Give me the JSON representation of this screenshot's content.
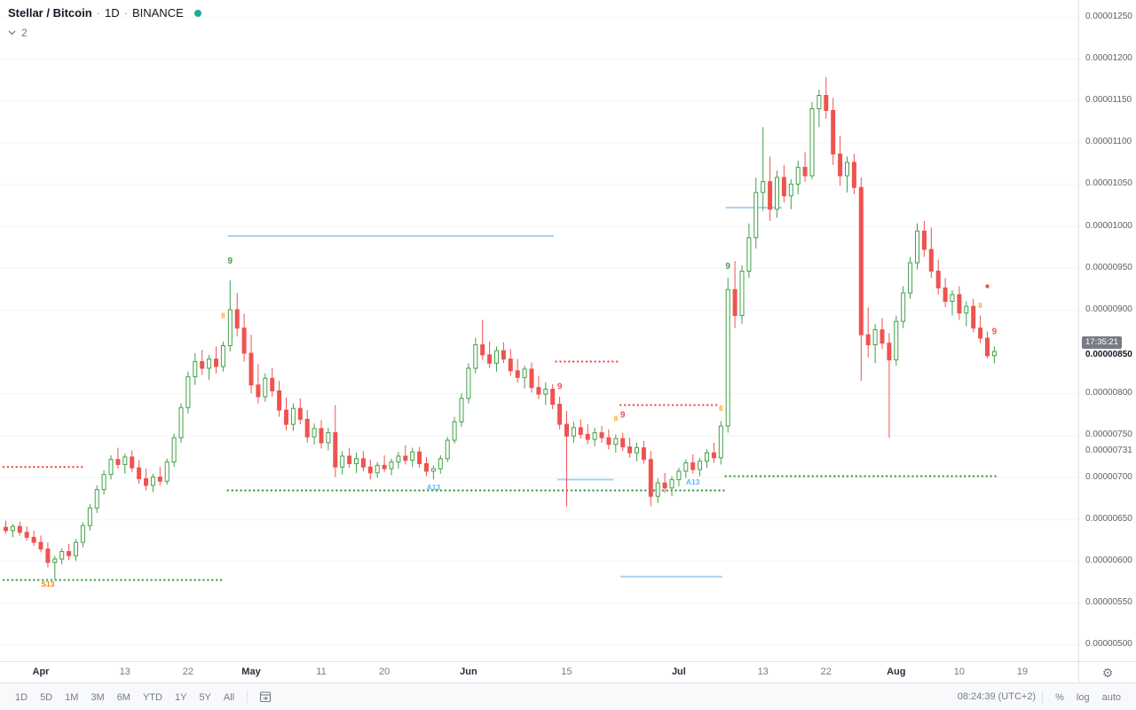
{
  "header": {
    "symbol": "Stellar / Bitcoin",
    "sep": "·",
    "interval": "1D",
    "exchange": "BINANCE",
    "indicators_count": "2",
    "status_color": "#26a69a"
  },
  "toolbar": {
    "ranges": [
      "1D",
      "5D",
      "1M",
      "3M",
      "6M",
      "YTD",
      "1Y",
      "5Y",
      "All"
    ],
    "clock": "08:24:39 (UTC+2)",
    "scales": [
      "%",
      "log",
      "auto"
    ]
  },
  "chart_data": {
    "type": "candlestick",
    "title": "Stellar / Bitcoin · 1D · BINANCE",
    "interval": "1D",
    "exchange": "BINANCE",
    "price_unit": "BTC",
    "value_scale": 1e-08,
    "ylim_sats": [
      480,
      1270
    ],
    "price_ticks": [
      "0.00001250",
      "0.00001200",
      "0.00001150",
      "0.00001100",
      "0.00001050",
      "0.00001000",
      "0.00000950",
      "0.00000900",
      "0.00000800",
      "0.00000750",
      "0.00000700",
      "0.00000650",
      "0.00000600",
      "0.00000550",
      "0.00000500"
    ],
    "extra_price_label": "0.00000731",
    "current": {
      "countdown": "17:35:21",
      "price": "0.00000850",
      "sats": 850
    },
    "time_ticks": [
      {
        "label": "Apr",
        "i": 5,
        "major": true
      },
      {
        "label": "13",
        "i": 17,
        "major": false
      },
      {
        "label": "22",
        "i": 26,
        "major": false
      },
      {
        "label": "May",
        "i": 35,
        "major": true
      },
      {
        "label": "11",
        "i": 45,
        "major": false
      },
      {
        "label": "20",
        "i": 54,
        "major": false
      },
      {
        "label": "Jun",
        "i": 66,
        "major": true
      },
      {
        "label": "15",
        "i": 80,
        "major": false
      },
      {
        "label": "Jul",
        "i": 96,
        "major": true
      },
      {
        "label": "13",
        "i": 108,
        "major": false
      },
      {
        "label": "22",
        "i": 117,
        "major": false
      },
      {
        "label": "Aug",
        "i": 127,
        "major": true
      },
      {
        "label": "10",
        "i": 136,
        "major": false
      },
      {
        "label": "19",
        "i": 145,
        "major": false
      }
    ],
    "candles_ohlc_sats": [
      [
        640,
        648,
        632,
        636
      ],
      [
        636,
        644,
        628,
        641
      ],
      [
        641,
        647,
        630,
        634
      ],
      [
        634,
        641,
        624,
        628
      ],
      [
        628,
        636,
        618,
        622
      ],
      [
        622,
        630,
        610,
        614
      ],
      [
        614,
        622,
        592,
        598
      ],
      [
        598,
        606,
        578,
        602
      ],
      [
        602,
        615,
        596,
        611
      ],
      [
        611,
        620,
        601,
        606
      ],
      [
        606,
        626,
        600,
        622
      ],
      [
        622,
        646,
        616,
        642
      ],
      [
        642,
        668,
        636,
        663
      ],
      [
        663,
        690,
        657,
        685
      ],
      [
        685,
        708,
        679,
        703
      ],
      [
        703,
        726,
        697,
        721
      ],
      [
        721,
        735,
        710,
        715
      ],
      [
        715,
        728,
        704,
        724
      ],
      [
        724,
        732,
        706,
        711
      ],
      [
        711,
        720,
        692,
        698
      ],
      [
        698,
        710,
        684,
        690
      ],
      [
        690,
        704,
        682,
        700
      ],
      [
        700,
        712,
        690,
        695
      ],
      [
        695,
        722,
        691,
        718
      ],
      [
        718,
        752,
        712,
        747
      ],
      [
        747,
        788,
        741,
        783
      ],
      [
        783,
        826,
        776,
        820
      ],
      [
        820,
        848,
        810,
        838
      ],
      [
        838,
        852,
        822,
        830
      ],
      [
        830,
        846,
        816,
        841
      ],
      [
        841,
        856,
        824,
        832
      ],
      [
        832,
        862,
        826,
        857
      ],
      [
        857,
        935,
        850,
        900
      ],
      [
        900,
        920,
        868,
        878
      ],
      [
        878,
        895,
        838,
        848
      ],
      [
        848,
        870,
        800,
        810
      ],
      [
        810,
        835,
        788,
        796
      ],
      [
        796,
        824,
        790,
        818
      ],
      [
        818,
        830,
        796,
        803
      ],
      [
        803,
        815,
        772,
        780
      ],
      [
        780,
        795,
        756,
        763
      ],
      [
        763,
        788,
        755,
        782
      ],
      [
        782,
        794,
        763,
        769
      ],
      [
        769,
        780,
        741,
        748
      ],
      [
        748,
        764,
        739,
        758
      ],
      [
        758,
        768,
        734,
        741
      ],
      [
        741,
        759,
        732,
        753
      ],
      [
        753,
        786,
        700,
        712
      ],
      [
        712,
        731,
        703,
        725
      ],
      [
        725,
        735,
        711,
        716
      ],
      [
        716,
        729,
        705,
        722
      ],
      [
        722,
        731,
        707,
        712
      ],
      [
        712,
        721,
        697,
        705
      ],
      [
        705,
        718,
        699,
        714
      ],
      [
        714,
        726,
        706,
        710
      ],
      [
        710,
        722,
        702,
        718
      ],
      [
        718,
        730,
        710,
        725
      ],
      [
        725,
        738,
        715,
        720
      ],
      [
        720,
        735,
        712,
        730
      ],
      [
        730,
        736,
        711,
        716
      ],
      [
        716,
        724,
        701,
        707
      ],
      [
        707,
        714,
        697,
        710
      ],
      [
        710,
        726,
        704,
        722
      ],
      [
        722,
        748,
        718,
        744
      ],
      [
        744,
        772,
        740,
        766
      ],
      [
        766,
        800,
        760,
        794
      ],
      [
        794,
        836,
        788,
        830
      ],
      [
        830,
        866,
        824,
        858
      ],
      [
        858,
        888,
        840,
        846
      ],
      [
        846,
        862,
        830,
        836
      ],
      [
        836,
        856,
        826,
        851
      ],
      [
        851,
        861,
        836,
        841
      ],
      [
        841,
        853,
        821,
        827
      ],
      [
        827,
        841,
        813,
        819
      ],
      [
        819,
        833,
        806,
        829
      ],
      [
        829,
        837,
        801,
        807
      ],
      [
        807,
        821,
        793,
        799
      ],
      [
        799,
        813,
        786,
        805
      ],
      [
        805,
        811,
        781,
        787
      ],
      [
        787,
        796,
        757,
        763
      ],
      [
        763,
        779,
        665,
        749
      ],
      [
        749,
        766,
        741,
        759
      ],
      [
        759,
        769,
        746,
        751
      ],
      [
        751,
        763,
        739,
        745
      ],
      [
        745,
        759,
        737,
        753
      ],
      [
        753,
        761,
        741,
        747
      ],
      [
        747,
        757,
        733,
        739
      ],
      [
        739,
        751,
        729,
        746
      ],
      [
        746,
        753,
        731,
        736
      ],
      [
        736,
        747,
        723,
        729
      ],
      [
        729,
        741,
        719,
        735
      ],
      [
        735,
        743,
        716,
        721
      ],
      [
        721,
        731,
        665,
        677
      ],
      [
        677,
        699,
        669,
        693
      ],
      [
        693,
        705,
        681,
        687
      ],
      [
        687,
        701,
        677,
        697
      ],
      [
        697,
        711,
        689,
        707
      ],
      [
        707,
        721,
        699,
        717
      ],
      [
        717,
        727,
        704,
        709
      ],
      [
        709,
        723,
        701,
        719
      ],
      [
        719,
        733,
        711,
        729
      ],
      [
        729,
        741,
        717,
        723
      ],
      [
        723,
        767,
        715,
        761
      ],
      [
        761,
        938,
        753,
        924
      ],
      [
        924,
        958,
        878,
        893
      ],
      [
        893,
        953,
        883,
        946
      ],
      [
        946,
        1003,
        938,
        986
      ],
      [
        986,
        1058,
        973,
        1040
      ],
      [
        1040,
        1118,
        1018,
        1053
      ],
      [
        1053,
        1083,
        1006,
        1020
      ],
      [
        1020,
        1066,
        1010,
        1058
      ],
      [
        1058,
        1073,
        1028,
        1036
      ],
      [
        1036,
        1056,
        1020,
        1050
      ],
      [
        1050,
        1078,
        1038,
        1070
      ],
      [
        1070,
        1088,
        1053,
        1060
      ],
      [
        1060,
        1148,
        1056,
        1140
      ],
      [
        1140,
        1163,
        1118,
        1156
      ],
      [
        1156,
        1178,
        1128,
        1138
      ],
      [
        1138,
        1153,
        1073,
        1086
      ],
      [
        1086,
        1108,
        1048,
        1060
      ],
      [
        1060,
        1083,
        1040,
        1076
      ],
      [
        1076,
        1086,
        1038,
        1046
      ],
      [
        1046,
        1058,
        815,
        870
      ],
      [
        870,
        903,
        843,
        858
      ],
      [
        858,
        883,
        836,
        876
      ],
      [
        876,
        890,
        853,
        860
      ],
      [
        860,
        872,
        747,
        840
      ],
      [
        840,
        893,
        833,
        886
      ],
      [
        886,
        928,
        878,
        920
      ],
      [
        920,
        963,
        913,
        956
      ],
      [
        956,
        1003,
        948,
        994
      ],
      [
        994,
        1006,
        963,
        972
      ],
      [
        972,
        998,
        938,
        946
      ],
      [
        946,
        960,
        918,
        926
      ],
      [
        926,
        938,
        903,
        910
      ],
      [
        910,
        923,
        893,
        918
      ],
      [
        918,
        928,
        888,
        896
      ],
      [
        896,
        910,
        880,
        904
      ],
      [
        904,
        913,
        873,
        878
      ],
      [
        878,
        893,
        860,
        866
      ],
      [
        866,
        874,
        842,
        845
      ],
      [
        845,
        856,
        836,
        850
      ]
    ],
    "levels": [
      {
        "price": 712,
        "from": 0,
        "to": 11.5,
        "style": "dotted",
        "color": "#ef5350"
      },
      {
        "price": 577,
        "from": 0,
        "to": 31.5,
        "style": "dotted",
        "color": "#43a047"
      },
      {
        "price": 988,
        "from": 32,
        "to": 78.5,
        "style": "solid",
        "color": "#a9d0f0"
      },
      {
        "price": 684,
        "from": 32,
        "to": 103,
        "style": "dotted",
        "color": "#43a047"
      },
      {
        "price": 838,
        "from": 78.8,
        "to": 87.5,
        "style": "dotted",
        "color": "#ef5350"
      },
      {
        "price": 697,
        "from": 79,
        "to": 87,
        "style": "solid",
        "color": "#a9d0f0"
      },
      {
        "price": 786,
        "from": 88,
        "to": 102,
        "style": "dotted",
        "color": "#ef5350"
      },
      {
        "price": 581,
        "from": 88,
        "to": 102.5,
        "style": "solid",
        "color": "#a9d0f0"
      },
      {
        "price": 1022,
        "from": 103,
        "to": 111,
        "style": "solid",
        "color": "#a9d0f0"
      },
      {
        "price": 701,
        "from": 103,
        "to": 142,
        "style": "dotted",
        "color": "#43a047"
      }
    ],
    "markers": [
      {
        "i": 6,
        "price": 572,
        "label": "S13",
        "color": "#f57f17",
        "size": 8.5
      },
      {
        "i": 31,
        "price": 893,
        "label": "8",
        "color": "#f9a825",
        "size": 8
      },
      {
        "i": 32,
        "price": 958,
        "label": "9",
        "color": "#43a047",
        "size": 10
      },
      {
        "i": 61,
        "price": 688,
        "label": "A13",
        "color": "#64b5f6",
        "size": 8.5
      },
      {
        "i": 79,
        "price": 808,
        "label": "9",
        "color": "#ef5350",
        "size": 10
      },
      {
        "i": 87,
        "price": 770,
        "label": "8",
        "color": "#f9a825",
        "size": 8
      },
      {
        "i": 88,
        "price": 774,
        "label": "9",
        "color": "#ef5350",
        "size": 10
      },
      {
        "i": 98,
        "price": 694,
        "label": "A13",
        "color": "#64b5f6",
        "size": 8.5
      },
      {
        "i": 102,
        "price": 782,
        "label": "8",
        "color": "#f9a825",
        "size": 8
      },
      {
        "i": 103,
        "price": 952,
        "label": "9",
        "color": "#43a047",
        "size": 10
      },
      {
        "i": 139,
        "price": 905,
        "label": "8",
        "color": "#f9a825",
        "size": 8
      },
      {
        "i": 140,
        "price": 928,
        "label": "•",
        "color": "#ef5350",
        "size": 8
      },
      {
        "i": 141,
        "price": 874,
        "label": "9",
        "color": "#ef5350",
        "size": 10
      }
    ],
    "colors": {
      "up": "#43a047",
      "down": "#ef5350",
      "grid": "#f2f4f7",
      "blue_line": "#a9d0f0"
    },
    "legend_note": "grid on (faint), legend top-left, price axis right, time axis bottom"
  }
}
